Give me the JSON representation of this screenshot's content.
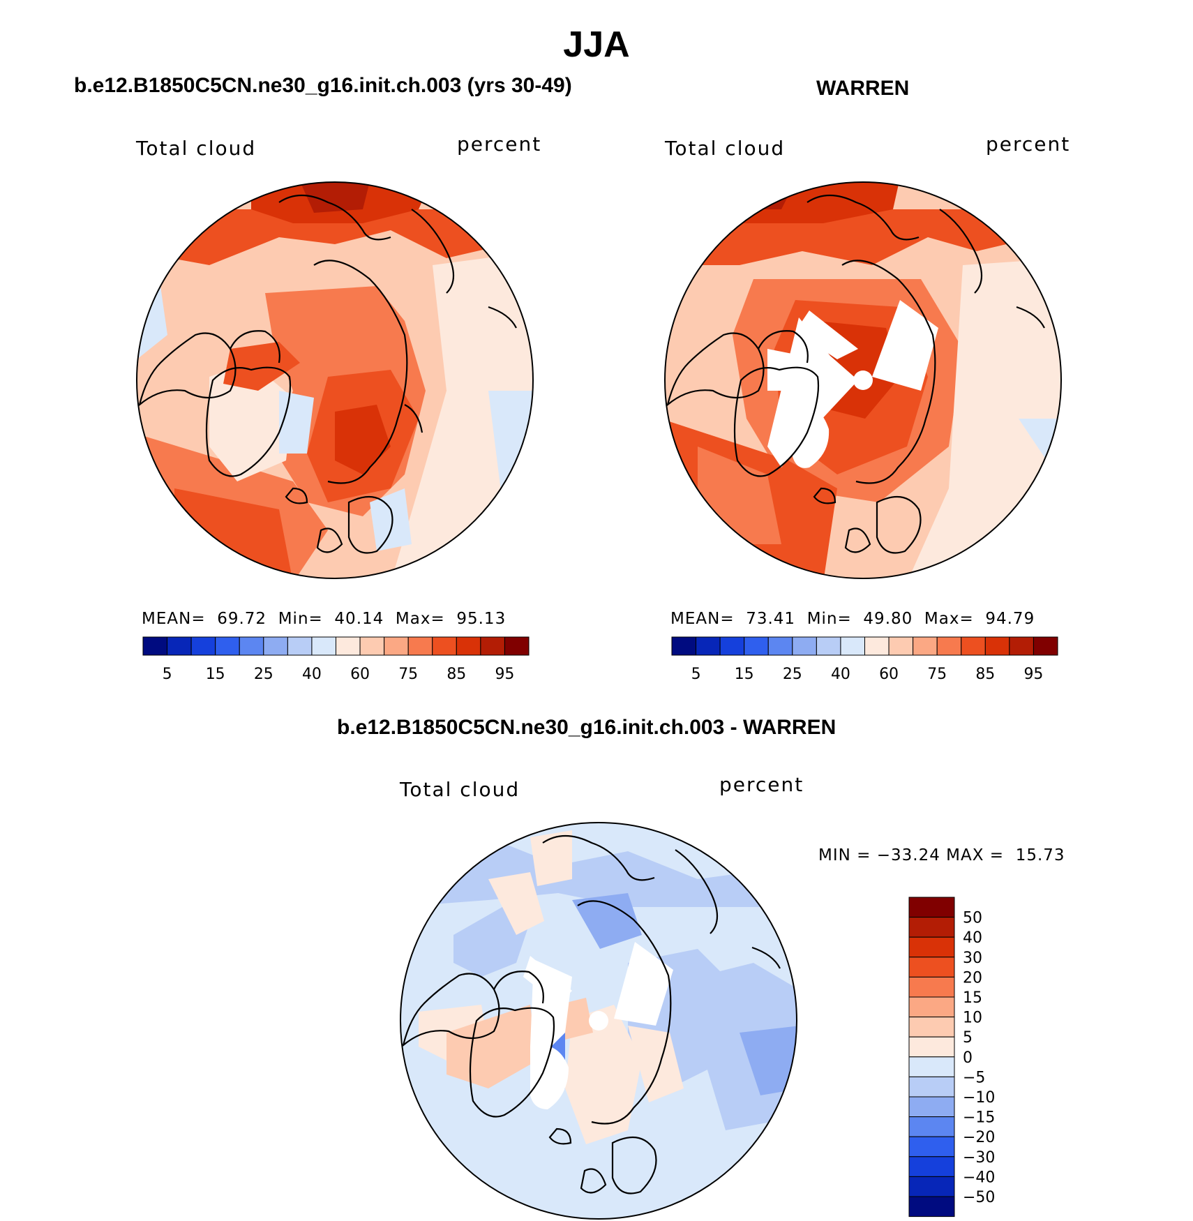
{
  "figure_title": "JJA",
  "panels": [
    {
      "title": "b.e12.B1850C5CN.ne30_g16.init.ch.003 (yrs 30-49)",
      "left_label": "Total cloud",
      "right_label": "percent",
      "stats": {
        "mean_label": "MEAN=",
        "mean": "69.72",
        "min_label": "Min=",
        "min": "40.14",
        "max_label": "Max=",
        "max": "95.13"
      }
    },
    {
      "title": "WARREN",
      "left_label": "Total cloud",
      "right_label": "percent",
      "stats": {
        "mean_label": "MEAN=",
        "mean": "73.41",
        "min_label": "Min=",
        "min": "49.80",
        "max_label": "Max=",
        "max": "94.79"
      }
    },
    {
      "title": "b.e12.B1850C5CN.ne30_g16.init.ch.003 - WARREN",
      "left_label": "Total cloud",
      "right_label": "percent",
      "stats_line": "MIN = −33.24 MAX =  15.73"
    }
  ],
  "chart_data": [
    {
      "type": "heatmap",
      "projection": "north polar stereographic",
      "title": "b.e12.B1850C5CN.ne30_g16.init.ch.003 (yrs 30-49)",
      "variable": "Total cloud",
      "units": "percent",
      "mean": 69.72,
      "min": 40.14,
      "max": 95.13,
      "colorbar": {
        "levels": [
          5,
          10,
          15,
          20,
          25,
          30,
          40,
          50,
          60,
          65,
          75,
          80,
          85,
          90,
          95
        ],
        "tick_labels": [
          "5",
          "15",
          "25",
          "40",
          "60",
          "75",
          "85",
          "95"
        ],
        "colors": [
          "#000b80",
          "#0726b8",
          "#1540dc",
          "#2f5fee",
          "#5c86f1",
          "#8eacf2",
          "#b8cdf6",
          "#d9e8fa",
          "#fde9dd",
          "#fdcbb1",
          "#fba884",
          "#f77a4e",
          "#ed5020",
          "#d93207",
          "#b31d05",
          "#800000"
        ]
      }
    },
    {
      "type": "heatmap",
      "projection": "north polar stereographic",
      "title": "WARREN",
      "variable": "Total cloud",
      "units": "percent",
      "mean": 73.41,
      "min": 49.8,
      "max": 94.79,
      "colorbar": {
        "levels": [
          5,
          10,
          15,
          20,
          25,
          30,
          40,
          50,
          60,
          65,
          75,
          80,
          85,
          90,
          95
        ],
        "tick_labels": [
          "5",
          "15",
          "25",
          "40",
          "60",
          "75",
          "85",
          "95"
        ],
        "colors": [
          "#000b80",
          "#0726b8",
          "#1540dc",
          "#2f5fee",
          "#5c86f1",
          "#8eacf2",
          "#b8cdf6",
          "#d9e8fa",
          "#fde9dd",
          "#fdcbb1",
          "#fba884",
          "#f77a4e",
          "#ed5020",
          "#d93207",
          "#b31d05",
          "#800000"
        ]
      }
    },
    {
      "type": "heatmap",
      "projection": "north polar stereographic",
      "title": "b.e12.B1850C5CN.ne30_g16.init.ch.003 - WARREN",
      "variable": "Total cloud",
      "units": "percent",
      "min": -33.24,
      "max": 15.73,
      "colorbar": {
        "tick_labels": [
          "50",
          "40",
          "30",
          "20",
          "15",
          "10",
          "5",
          "0",
          "−5",
          "−10",
          "−15",
          "−20",
          "−30",
          "−40",
          "−50"
        ],
        "colors_top_to_bottom": [
          "#800000",
          "#b31d05",
          "#d93207",
          "#ed5020",
          "#f77a4e",
          "#fba884",
          "#fdcbb1",
          "#fde9dd",
          "#d9e8fa",
          "#b8cdf6",
          "#8eacf2",
          "#5c86f1",
          "#2f5fee",
          "#1540dc",
          "#0726b8",
          "#000b80"
        ]
      }
    }
  ]
}
